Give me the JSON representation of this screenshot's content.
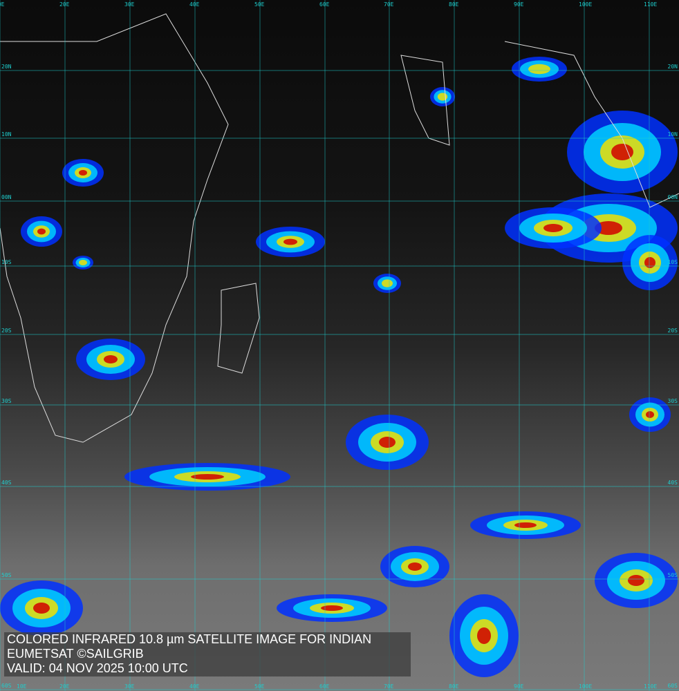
{
  "caption": {
    "line1": "COLORED INFRARED 10.8 µm SATELLITE IMAGE FOR INDIAN",
    "line2": "EUMETSAT ©SAILGRIB",
    "line3": "VALID:  04 NOV 2025 10:00 UTC"
  },
  "grid": {
    "longitudes": [
      "10E",
      "20E",
      "30E",
      "40E",
      "50E",
      "60E",
      "70E",
      "80E",
      "90E",
      "100E",
      "110E"
    ],
    "latitudes": [
      "20N",
      "10N",
      "00N",
      "10S",
      "20S",
      "30S",
      "40S",
      "50S",
      "60S"
    ]
  },
  "colors": {
    "grid": "#1ecfcf",
    "caption_text": "#ffffff",
    "cold_red": "#d00000",
    "yellow": "#f0e000",
    "cyan": "#00d0ff",
    "blue": "#0030ff"
  }
}
